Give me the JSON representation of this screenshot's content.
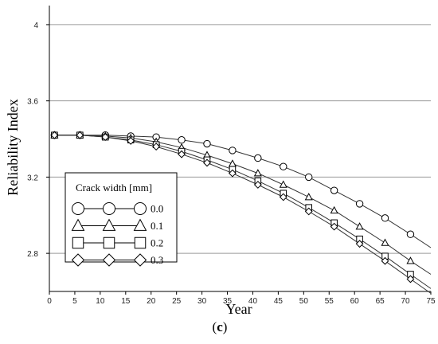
{
  "chart_data": {
    "type": "line",
    "xlabel": "Year",
    "ylabel": "Reliability Index",
    "xlim": [
      0,
      75
    ],
    "ylim": [
      2.6,
      4.1
    ],
    "xticks": [
      0,
      5,
      10,
      15,
      20,
      25,
      30,
      35,
      40,
      45,
      50,
      55,
      60,
      65,
      70,
      75
    ],
    "yticks": [
      2.8,
      3.2,
      3.6,
      4.0
    ],
    "ytick_labels": [
      "2.8",
      "3.2",
      "3.6",
      "4"
    ],
    "grid": "horizontal",
    "legend": {
      "title": "Crack width [mm]",
      "position": "bottom-left"
    },
    "marker_x": [
      1,
      6,
      11,
      16,
      21,
      26,
      31,
      36,
      41,
      46,
      51,
      56,
      61,
      66,
      71
    ],
    "series": [
      {
        "name": "0.0",
        "marker": "circle",
        "values": [
          3.42,
          3.42,
          3.42,
          3.415,
          3.41,
          3.395,
          3.375,
          3.34,
          3.3,
          3.255,
          3.2,
          3.13,
          3.06,
          2.985,
          2.9
        ],
        "line_end": [
          75,
          2.83
        ]
      },
      {
        "name": "0.1",
        "marker": "triangle",
        "values": [
          3.42,
          3.42,
          3.415,
          3.405,
          3.385,
          3.355,
          3.315,
          3.27,
          3.22,
          3.16,
          3.095,
          3.025,
          2.94,
          2.855,
          2.76
        ],
        "line_end": [
          75,
          2.69
        ]
      },
      {
        "name": "0.2",
        "marker": "square",
        "values": [
          3.42,
          3.42,
          3.41,
          3.395,
          3.37,
          3.335,
          3.29,
          3.24,
          3.18,
          3.115,
          3.04,
          2.96,
          2.875,
          2.785,
          2.69
        ],
        "line_end": [
          75,
          2.615
        ]
      },
      {
        "name": "0.3",
        "marker": "diamond",
        "values": [
          3.42,
          3.42,
          3.41,
          3.39,
          3.36,
          3.32,
          3.275,
          3.22,
          3.16,
          3.095,
          3.02,
          2.94,
          2.85,
          2.76,
          2.665
        ],
        "line_end": [
          75,
          2.59
        ]
      }
    ]
  },
  "caption": {
    "open": "(",
    "letter": "c",
    "close": ")"
  }
}
